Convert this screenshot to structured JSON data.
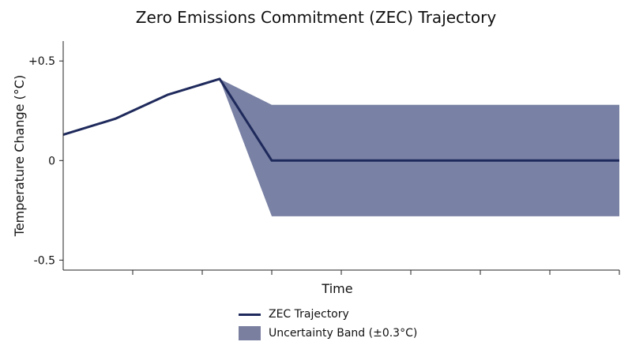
{
  "chart_data": {
    "type": "line",
    "title": "Zero Emissions Commitment (ZEC) Trajectory",
    "xlabel": "Time",
    "ylabel": "Temperature Change (°C)",
    "ylim": [
      -0.55,
      0.6
    ],
    "xlim": [
      0,
      8
    ],
    "x_ticks": [
      1,
      2,
      3,
      4,
      5,
      6,
      7,
      8
    ],
    "y_ticks": [
      {
        "value": 0.5,
        "label": "+0.5"
      },
      {
        "value": 0,
        "label": "0"
      },
      {
        "value": -0.5,
        "label": "-0.5"
      }
    ],
    "grid": false,
    "legend_position": "bottom-center",
    "series": [
      {
        "name": "ZEC Trajectory",
        "kind": "line",
        "color": "#1f2a5c",
        "x": [
          0,
          0.75,
          1.5,
          2.25,
          3,
          8
        ],
        "y": [
          0.13,
          0.21,
          0.33,
          0.41,
          0,
          0
        ]
      },
      {
        "name": "Uncertainty Band (±0.3°C)",
        "kind": "band",
        "color": "#5c6590",
        "x": [
          2.25,
          3,
          8
        ],
        "upper": [
          0.41,
          0.28,
          0.28
        ],
        "lower": [
          0.41,
          -0.28,
          -0.28
        ]
      }
    ]
  }
}
